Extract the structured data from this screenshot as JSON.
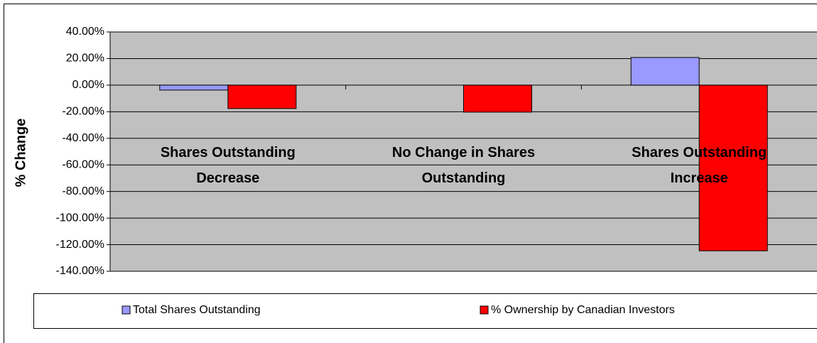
{
  "chart_data": {
    "type": "bar",
    "y_label": "% Change",
    "categories": [
      "Shares Outstanding Decrease",
      "No Change in Shares Outstanding",
      "Shares Outstanding Increase"
    ],
    "series": [
      {
        "name": "Total Shares Outstanding",
        "color": "#9999ff",
        "values": [
          -3.7,
          0,
          20.8
        ]
      },
      {
        "name": "% Ownership by Canadian Investors",
        "color": "#ff0000",
        "values": [
          -17.6,
          -20.3,
          -124.6
        ]
      }
    ],
    "ylim": [
      -140,
      40
    ],
    "yticks": [
      {
        "value": 40,
        "label": "40.00%"
      },
      {
        "value": 20,
        "label": "20.00%"
      },
      {
        "value": 0,
        "label": "0.00%"
      },
      {
        "value": -20,
        "label": "-20.00%"
      },
      {
        "value": -40,
        "label": "-40.00%"
      },
      {
        "value": -60,
        "label": "-60.00%"
      },
      {
        "value": -80,
        "label": "-80.00%"
      },
      {
        "value": -100,
        "label": "-100.00%"
      },
      {
        "value": -120,
        "label": "-120.00%"
      },
      {
        "value": -140,
        "label": "-140.00%"
      }
    ],
    "grid": true,
    "legend": "bottom"
  }
}
